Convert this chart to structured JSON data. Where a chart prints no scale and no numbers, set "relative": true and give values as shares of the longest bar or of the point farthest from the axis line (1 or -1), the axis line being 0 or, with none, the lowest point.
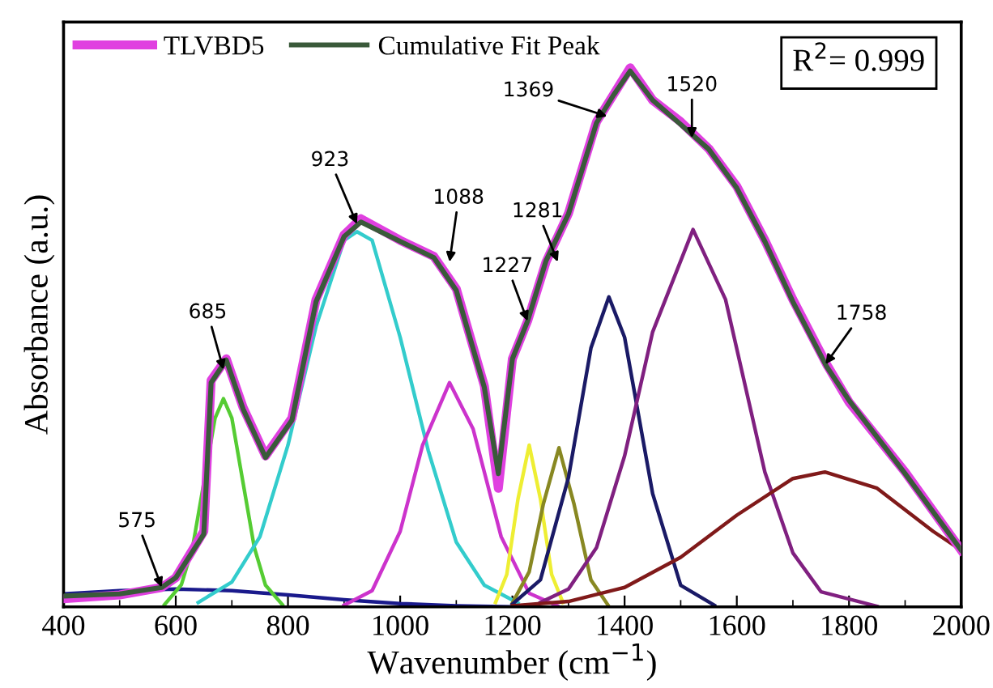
{
  "chart_data": {
    "type": "line",
    "relative": true,
    "xlabel": "Wavenumber (cm$^{−1}$)",
    "ylabel": "Absorbance (a.u.)",
    "xlim": [
      400,
      2000
    ],
    "xticks": [
      400,
      600,
      800,
      1000,
      1200,
      1400,
      1600,
      1800,
      2000
    ],
    "grid": false,
    "legend": "top left",
    "marker": "none",
    "line_style": "solid",
    "series": [
      {
        "name": "TLVBD5",
        "color": "#e040e0",
        "x": [
          400,
          500,
          575,
          600,
          650,
          663,
          690,
          720,
          760,
          807,
          850,
          900,
          930,
          1000,
          1060,
          1100,
          1150,
          1175,
          1200,
          1227,
          1260,
          1300,
          1350,
          1380,
          1410,
          1450,
          1500,
          1550,
          1600,
          1650,
          1700,
          1760,
          1800,
          1900,
          2000
        ],
        "values": [
          0.015,
          0.022,
          0.036,
          0.054,
          0.14,
          0.42,
          0.46,
          0.37,
          0.28,
          0.35,
          0.57,
          0.69,
          0.72,
          0.68,
          0.65,
          0.59,
          0.41,
          0.22,
          0.46,
          0.53,
          0.64,
          0.73,
          0.9,
          0.95,
          1.0,
          0.94,
          0.9,
          0.85,
          0.78,
          0.68,
          0.57,
          0.45,
          0.38,
          0.25,
          0.105
        ]
      },
      {
        "name": "Cumulative Fit Peak",
        "color": "#3a5a3a",
        "x": [
          400,
          500,
          575,
          600,
          650,
          663,
          690,
          720,
          760,
          807,
          850,
          900,
          930,
          1000,
          1060,
          1100,
          1150,
          1175,
          1200,
          1227,
          1260,
          1300,
          1350,
          1380,
          1410,
          1450,
          1500,
          1550,
          1600,
          1650,
          1700,
          1760,
          1800,
          1900,
          2000
        ],
        "values": [
          0.02,
          0.024,
          0.036,
          0.054,
          0.135,
          0.416,
          0.458,
          0.367,
          0.277,
          0.346,
          0.566,
          0.687,
          0.714,
          0.678,
          0.648,
          0.587,
          0.407,
          0.247,
          0.46,
          0.53,
          0.642,
          0.729,
          0.898,
          0.949,
          0.994,
          0.94,
          0.895,
          0.849,
          0.777,
          0.678,
          0.566,
          0.446,
          0.383,
          0.247,
          0.105
        ]
      },
      {
        "color": "#1a1a8c",
        "x": [
          400,
          500,
          600,
          700,
          800,
          900,
          1000,
          1100,
          1200
        ],
        "values": [
          0.024,
          0.03,
          0.033,
          0.03,
          0.022,
          0.013,
          0.006,
          0.002,
          0.0
        ]
      },
      {
        "color": "#55cc33",
        "x": [
          580,
          610,
          630,
          650,
          670,
          685,
          700,
          720,
          740,
          760,
          790
        ],
        "values": [
          0.004,
          0.041,
          0.11,
          0.23,
          0.35,
          0.386,
          0.35,
          0.23,
          0.11,
          0.04,
          0.004
        ]
      },
      {
        "color": "#33cccc",
        "x": [
          640,
          700,
          750,
          800,
          850,
          900,
          923,
          950,
          1000,
          1050,
          1100,
          1150,
          1210
        ],
        "values": [
          0.008,
          0.046,
          0.13,
          0.3,
          0.52,
          0.68,
          0.696,
          0.68,
          0.5,
          0.29,
          0.12,
          0.04,
          0.007
        ]
      },
      {
        "color": "#cc33cc",
        "x": [
          900,
          950,
          1000,
          1040,
          1088,
          1130,
          1180,
          1230,
          1280
        ],
        "values": [
          0.003,
          0.03,
          0.14,
          0.3,
          0.416,
          0.33,
          0.13,
          0.025,
          0.002
        ]
      },
      {
        "color": "#eeee33",
        "x": [
          1170,
          1190,
          1210,
          1230,
          1250,
          1270,
          1290
        ],
        "values": [
          0.008,
          0.06,
          0.2,
          0.3,
          0.2,
          0.06,
          0.008
        ]
      },
      {
        "color": "#888822",
        "x": [
          1200,
          1230,
          1255,
          1283,
          1310,
          1340,
          1370
        ],
        "values": [
          0.007,
          0.065,
          0.19,
          0.295,
          0.19,
          0.05,
          0.004
        ]
      },
      {
        "color": "#1a1a66",
        "x": [
          1200,
          1250,
          1300,
          1340,
          1372,
          1400,
          1450,
          1500,
          1560
        ],
        "values": [
          0.005,
          0.05,
          0.24,
          0.48,
          0.575,
          0.5,
          0.21,
          0.04,
          0.003
        ]
      },
      {
        "color": "#802080",
        "x": [
          1250,
          1300,
          1350,
          1400,
          1450,
          1522,
          1580,
          1650,
          1700,
          1750,
          1850
        ],
        "values": [
          0.008,
          0.033,
          0.11,
          0.28,
          0.51,
          0.7,
          0.57,
          0.25,
          0.1,
          0.028,
          0.001
        ]
      },
      {
        "color": "#801a1a",
        "x": [
          1200,
          1300,
          1400,
          1500,
          1600,
          1700,
          1757,
          1850,
          1950,
          2000
        ],
        "values": [
          0.002,
          0.01,
          0.036,
          0.092,
          0.17,
          0.238,
          0.25,
          0.22,
          0.14,
          0.105
        ]
      }
    ],
    "annotations": [
      {
        "text": "575",
        "x": 575,
        "y": 0.036
      },
      {
        "text": "685",
        "x": 685,
        "y": 0.44
      },
      {
        "text": "923",
        "x": 923,
        "y": 0.71
      },
      {
        "text": "1088",
        "x": 1088,
        "y": 0.64
      },
      {
        "text": "1227",
        "x": 1227,
        "y": 0.53
      },
      {
        "text": "1281",
        "x": 1281,
        "y": 0.64
      },
      {
        "text": "1369",
        "x": 1369,
        "y": 0.91
      },
      {
        "text": "1520",
        "x": 1520,
        "y": 0.87
      },
      {
        "text": "1758",
        "x": 1758,
        "y": 0.45
      },
      "R$^{2}$= 0.999"
    ]
  }
}
